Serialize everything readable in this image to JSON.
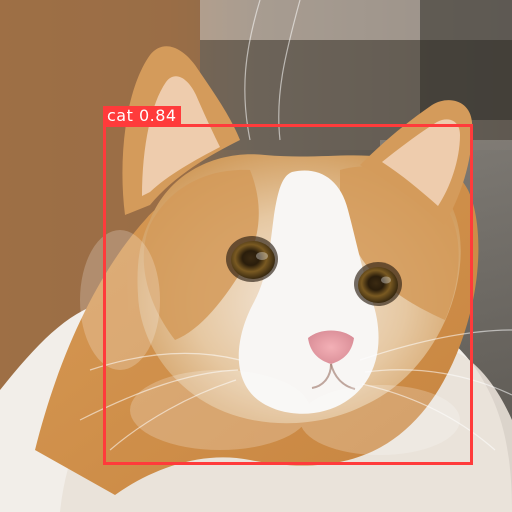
{
  "image": {
    "subject": "cat"
  },
  "detection": {
    "label": "cat 0.84",
    "class_name": "cat",
    "confidence": 0.84,
    "box_color": "#ff3b3b",
    "label_text_color": "#ffffff"
  }
}
